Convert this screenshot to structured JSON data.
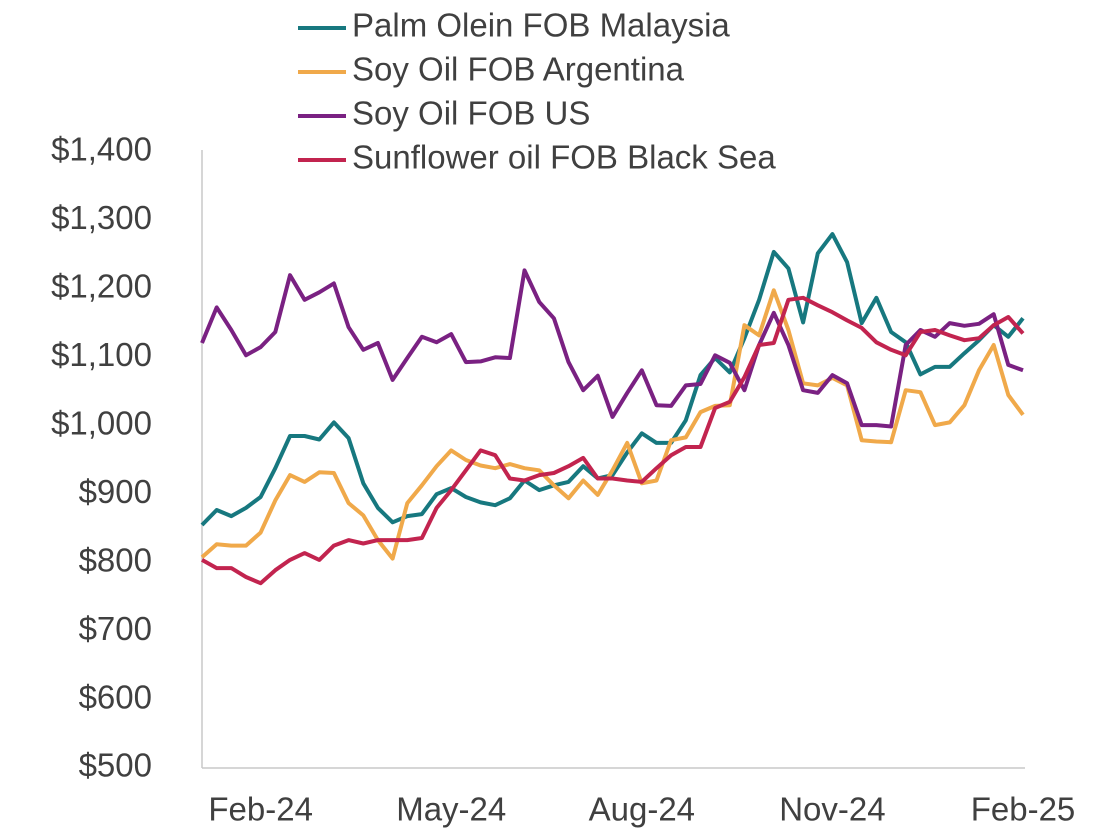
{
  "chart_data": {
    "type": "line",
    "categories": [
      null,
      null,
      null,
      null,
      "Feb-24",
      null,
      null,
      null,
      null,
      null,
      null,
      null,
      null,
      null,
      null,
      null,
      null,
      "May-24",
      null,
      null,
      null,
      null,
      null,
      null,
      null,
      null,
      null,
      null,
      null,
      null,
      "Aug-24",
      null,
      null,
      null,
      null,
      null,
      null,
      null,
      null,
      null,
      null,
      null,
      null,
      "Nov-24",
      null,
      null,
      null,
      null,
      null,
      null,
      null,
      null,
      null,
      null,
      null,
      null,
      "Feb-25"
    ],
    "series": [
      {
        "name": "Palm Olein FOB Malaysia",
        "color": "#17787f",
        "values": [
          855,
          877,
          868,
          880,
          896,
          938,
          985,
          985,
          980,
          1005,
          982,
          916,
          880,
          859,
          868,
          871,
          900,
          909,
          896,
          888,
          884,
          894,
          920,
          906,
          913,
          918,
          941,
          923,
          928,
          961,
          989,
          975,
          975,
          1008,
          1074,
          1099,
          1078,
          1128,
          1184,
          1254,
          1230,
          1151,
          1252,
          1280,
          1239,
          1150,
          1187,
          1137,
          1122,
          1075,
          1086,
          1086,
          1106,
          1125,
          1147,
          1130,
          1157
        ]
      },
      {
        "name": "Soy Oil FOB Argentina",
        "color": "#f0a94a",
        "values": [
          808,
          827,
          825,
          825,
          844,
          891,
          928,
          918,
          932,
          931,
          887,
          869,
          833,
          806,
          887,
          913,
          941,
          964,
          950,
          942,
          938,
          944,
          938,
          935,
          913,
          894,
          920,
          899,
          935,
          975,
          916,
          920,
          979,
          983,
          1020,
          1029,
          1030,
          1147,
          1132,
          1198,
          1140,
          1062,
          1059,
          1070,
          1059,
          979,
          977,
          976,
          1052,
          1049,
          1001,
          1005,
          1030,
          1081,
          1118,
          1045,
          1016
        ]
      },
      {
        "name": "Soy Oil FOB US",
        "color": "#7a2182",
        "values": [
          1121,
          1173,
          1140,
          1103,
          1115,
          1137,
          1220,
          1184,
          1195,
          1208,
          1144,
          1111,
          1121,
          1067,
          1099,
          1130,
          1122,
          1134,
          1093,
          1094,
          1100,
          1099,
          1227,
          1181,
          1157,
          1093,
          1052,
          1073,
          1013,
          1048,
          1081,
          1030,
          1029,
          1059,
          1061,
          1103,
          1092,
          1052,
          1118,
          1165,
          1118,
          1052,
          1048,
          1074,
          1062,
          1001,
          1001,
          999,
          1118,
          1140,
          1130,
          1150,
          1146,
          1149,
          1163,
          1089,
          1081
        ]
      },
      {
        "name": "Sunflower oil FOB Black Sea",
        "color": "#c2244f",
        "values": [
          804,
          792,
          792,
          779,
          770,
          789,
          804,
          814,
          804,
          825,
          833,
          828,
          833,
          833,
          833,
          836,
          880,
          906,
          935,
          964,
          957,
          923,
          920,
          928,
          931,
          941,
          953,
          923,
          923,
          920,
          918,
          938,
          957,
          969,
          969,
          1026,
          1035,
          1071,
          1118,
          1121,
          1184,
          1187,
          1176,
          1166,
          1154,
          1143,
          1122,
          1111,
          1103,
          1137,
          1140,
          1132,
          1125,
          1128,
          1147,
          1159,
          1135
        ]
      }
    ],
    "ylim": [
      500,
      1400
    ],
    "yticks": [
      {
        "value": 500,
        "label": "$500"
      },
      {
        "value": 600,
        "label": "$600"
      },
      {
        "value": 700,
        "label": "$700"
      },
      {
        "value": 800,
        "label": "$800"
      },
      {
        "value": 900,
        "label": "$900"
      },
      {
        "value": 1000,
        "label": "$1,000"
      },
      {
        "value": 1100,
        "label": "$1,100"
      },
      {
        "value": 1200,
        "label": "$1,200"
      },
      {
        "value": 1300,
        "label": "$1,300"
      },
      {
        "value": 1400,
        "label": "$1,400"
      }
    ],
    "grid": false,
    "legend": "top"
  }
}
